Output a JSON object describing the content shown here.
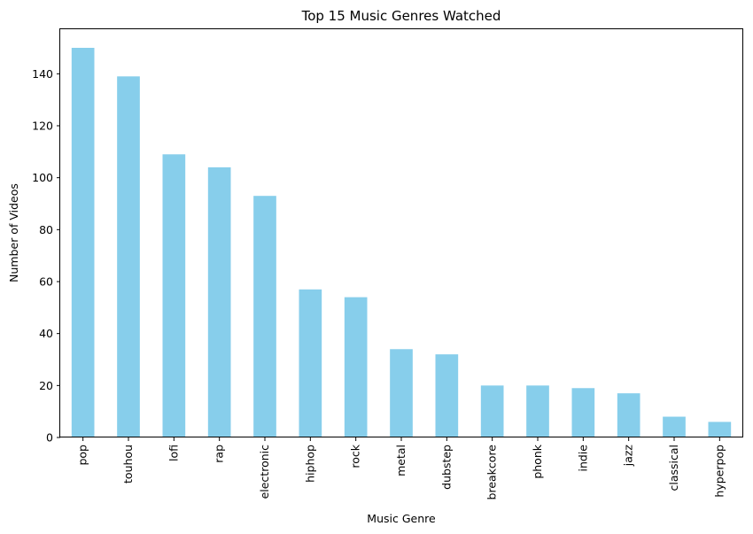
{
  "chart_data": {
    "type": "bar",
    "title": "Top 15 Music Genres Watched",
    "xlabel": "Music Genre",
    "ylabel": "Number of Videos",
    "categories": [
      "pop",
      "touhou",
      "lofi",
      "rap",
      "electronic",
      "hiphop",
      "rock",
      "metal",
      "dubstep",
      "breakcore",
      "phonk",
      "indie",
      "jazz",
      "classical",
      "hyperpop"
    ],
    "values": [
      150,
      139,
      109,
      104,
      93,
      57,
      54,
      34,
      32,
      20,
      20,
      19,
      17,
      8,
      6
    ],
    "ylim": [
      0,
      157.5
    ],
    "yticks": [
      0,
      20,
      40,
      60,
      80,
      100,
      120,
      140
    ],
    "grid": false,
    "legend": "none",
    "bar_color": "#87ceeb"
  }
}
